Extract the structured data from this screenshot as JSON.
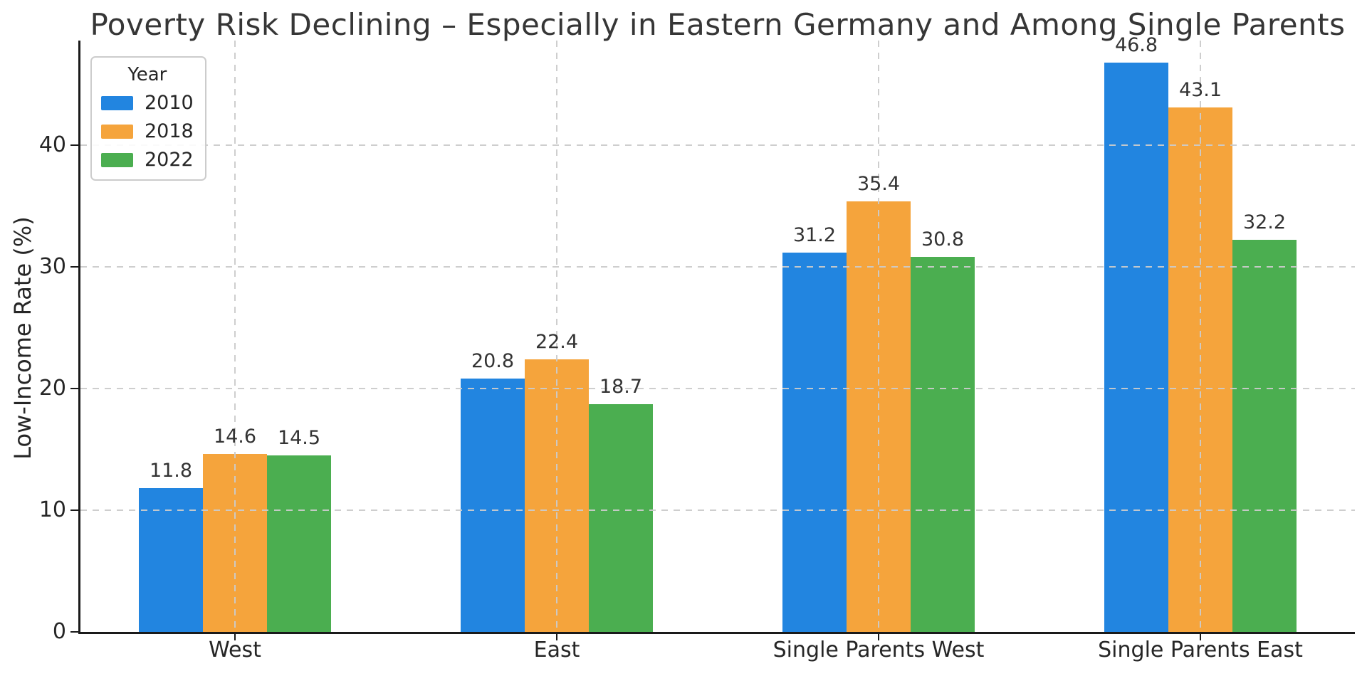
{
  "chart_data": {
    "type": "bar",
    "title": "Poverty Risk Declining – Especially in Eastern Germany and Among Single Parents",
    "ylabel": "Low-Income Rate (%)",
    "xlabel": "",
    "categories": [
      "West",
      "East",
      "Single Parents West",
      "Single Parents East"
    ],
    "series": [
      {
        "name": "2010",
        "color": "#2285E0",
        "values": [
          11.8,
          20.8,
          31.2,
          46.8
        ]
      },
      {
        "name": "2018",
        "color": "#F5A43C",
        "values": [
          14.6,
          22.4,
          35.4,
          43.1
        ]
      },
      {
        "name": "2022",
        "color": "#4BAE50",
        "values": [
          14.5,
          18.7,
          30.8,
          32.2
        ]
      }
    ],
    "value_labels": true,
    "ylim": [
      0,
      48.6
    ],
    "yticks": [
      0,
      10,
      20,
      30,
      40
    ],
    "grid": "dashed, horizontal and vertical, drawn above bars",
    "legend": {
      "title": "Year",
      "entries": [
        "2010",
        "2018",
        "2022"
      ],
      "position": "upper left"
    },
    "colors": {
      "bar_blue": "#2285E0",
      "bar_orange": "#F5A43C",
      "bar_green": "#4BAE50",
      "grid": "#cbcbcb",
      "axis": "#1a1a1a",
      "text": "#262626"
    }
  }
}
